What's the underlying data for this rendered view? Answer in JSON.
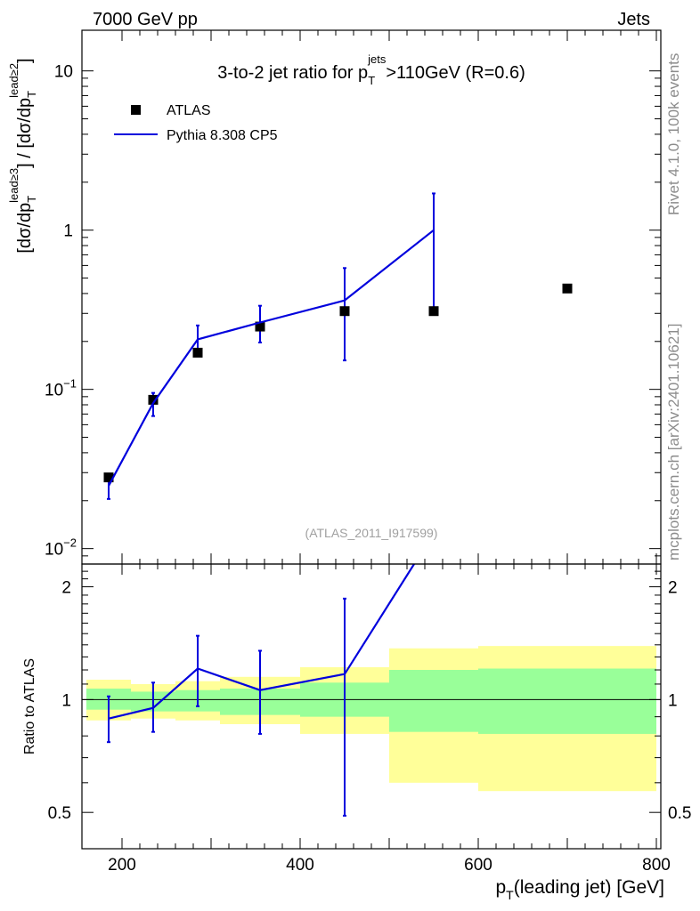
{
  "header": {
    "left": "7000 GeV pp",
    "right": "Jets"
  },
  "side_text": {
    "rivet": "Rivet 4.1.0,  100k events",
    "mcplots": "mcplots.cern.ch [arXiv:2401.10621]"
  },
  "chart_data": {
    "type": "line",
    "title": "3-to-2 jet ratio for p_T^jets >110GeV (R=0.6)",
    "title_parts": {
      "prefix": "3-to-2 jet ratio for p",
      "sub": "T",
      "sup": "jets",
      "suffix": ">110GeV (R=0.6)"
    },
    "ylabel": "[dσ/dp_T^lead≥3] / [dσ/dp_T^lead≥2]",
    "ylabel_parts": {
      "open": "[dσ/dp",
      "sub": "T",
      "sup3": "lead≥3",
      "mid": "] / [dσ/dp",
      "sup2": "lead≥2",
      "close": "]"
    },
    "xlabel": "p_T(leading jet) [GeV]",
    "xlabel_parts": {
      "p": "p",
      "sub": "T",
      "rest": "(leading jet) [GeV]"
    },
    "watermark": "(ATLAS_2011_I917599)",
    "xlim": [
      155,
      805
    ],
    "ylim_log": [
      0.008,
      18
    ],
    "ratio_ylabel": "Ratio to ATLAS",
    "ratio_ylim_log": [
      0.4,
      2.3
    ],
    "x_ticks": [
      {
        "value": 200,
        "label": "200"
      },
      {
        "value": 400,
        "label": "400"
      },
      {
        "value": 600,
        "label": "600"
      },
      {
        "value": 800,
        "label": "800"
      }
    ],
    "y_ticks": [
      {
        "value": 10,
        "mant": "10",
        "exp": ""
      },
      {
        "value": 1,
        "mant": "1",
        "exp": ""
      },
      {
        "value": 0.1,
        "mant": "10",
        "exp": "−1"
      },
      {
        "value": 0.01,
        "mant": "10",
        "exp": "−2"
      }
    ],
    "ratio_ticks": [
      {
        "value": 0.5,
        "label": "0.5"
      },
      {
        "value": 1,
        "label": "1"
      },
      {
        "value": 2,
        "label": "2"
      }
    ],
    "series": [
      {
        "name": "ATLAS",
        "kind": "data",
        "color": "#000000",
        "points": [
          {
            "x": 185,
            "y": 0.028
          },
          {
            "x": 235,
            "y": 0.086
          },
          {
            "x": 285,
            "y": 0.17
          },
          {
            "x": 355,
            "y": 0.248
          },
          {
            "x": 450,
            "y": 0.31
          },
          {
            "x": 550,
            "y": 0.31
          },
          {
            "x": 700,
            "y": 0.43
          }
        ]
      },
      {
        "name": "Pythia 8.308 CP5",
        "kind": "mc",
        "color": "#0000dd",
        "points": [
          {
            "x": 185,
            "y": 0.0248,
            "lo": 0.0205,
            "hi": 0.029
          },
          {
            "x": 235,
            "y": 0.082,
            "lo": 0.068,
            "hi": 0.095
          },
          {
            "x": 285,
            "y": 0.206,
            "lo": 0.165,
            "hi": 0.252
          },
          {
            "x": 355,
            "y": 0.263,
            "lo": 0.197,
            "hi": 0.335
          },
          {
            "x": 450,
            "y": 0.362,
            "lo": 0.152,
            "hi": 0.578
          },
          {
            "x": 550,
            "y": 1.0,
            "lo": 0.31,
            "hi": 1.7
          }
        ]
      }
    ],
    "ratio_series": {
      "name": "Pythia 8.308 CP5",
      "points": [
        {
          "x": 185,
          "y": 0.89,
          "lo": 0.77,
          "hi": 1.02
        },
        {
          "x": 235,
          "y": 0.95,
          "lo": 0.82,
          "hi": 1.11
        },
        {
          "x": 285,
          "y": 1.21,
          "lo": 0.96,
          "hi": 1.48
        },
        {
          "x": 355,
          "y": 1.06,
          "lo": 0.81,
          "hi": 1.35
        },
        {
          "x": 450,
          "y": 1.17,
          "lo": 0.49,
          "hi": 1.86
        },
        {
          "x": 528,
          "y": 2.3
        }
      ]
    },
    "ratio_bands": [
      {
        "x0": 160,
        "x1": 210,
        "inner": [
          0.94,
          1.07
        ],
        "outer": [
          0.88,
          1.13
        ]
      },
      {
        "x0": 210,
        "x1": 260,
        "inner": [
          0.93,
          1.05
        ],
        "outer": [
          0.89,
          1.1
        ]
      },
      {
        "x0": 260,
        "x1": 310,
        "inner": [
          0.93,
          1.06
        ],
        "outer": [
          0.88,
          1.12
        ]
      },
      {
        "x0": 310,
        "x1": 400,
        "inner": [
          0.91,
          1.07
        ],
        "outer": [
          0.86,
          1.15
        ]
      },
      {
        "x0": 400,
        "x1": 500,
        "inner": [
          0.9,
          1.11
        ],
        "outer": [
          0.81,
          1.22
        ]
      },
      {
        "x0": 500,
        "x1": 600,
        "inner": [
          0.82,
          1.2
        ],
        "outer": [
          0.6,
          1.37
        ]
      },
      {
        "x0": 600,
        "x1": 800,
        "inner": [
          0.81,
          1.21
        ],
        "outer": [
          0.57,
          1.39
        ]
      }
    ],
    "band_colors": {
      "inner": "#99ff99",
      "outer": "#ffff99"
    }
  }
}
